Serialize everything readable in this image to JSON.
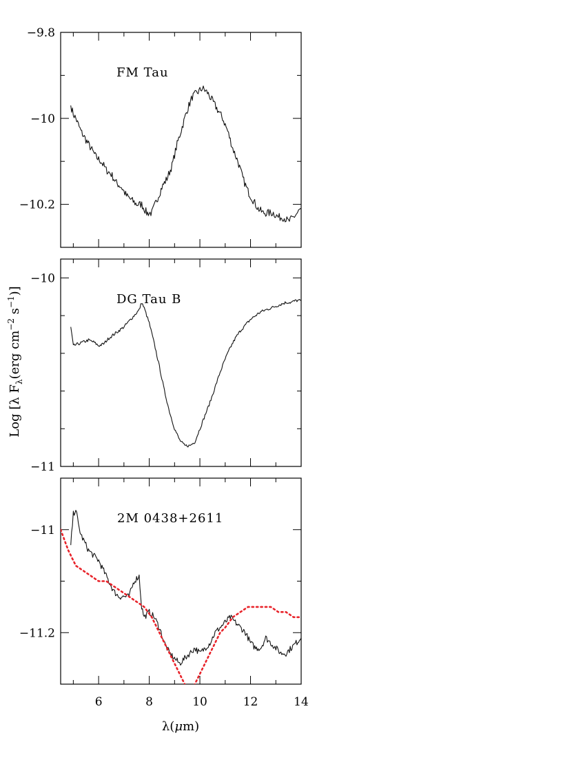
{
  "chart_data": {
    "type": "line",
    "layout": "vertical-stack",
    "x_axis": {
      "ticks": [
        6,
        8,
        10,
        12,
        14
      ],
      "tick_labels": [
        "6",
        "8",
        "10",
        "12",
        "14"
      ],
      "minor_step": 1,
      "range": [
        4.5,
        14.0
      ]
    },
    "xlabel": {
      "prefix": "λ(",
      "mu": "μ",
      "suffix": "m)"
    },
    "ylabel": {
      "text": "Log [λ F",
      "sub": "λ",
      "text2": "(erg cm",
      "sup1": "−2",
      "text3": " s",
      "sup2": "−1",
      "text4": ")]"
    },
    "colors": {
      "observed": "#111111",
      "model": "#e8232a"
    },
    "panels": [
      {
        "label": "FM Tau",
        "ylim": [
          -10.3,
          -9.8
        ],
        "yticks": [
          -9.8,
          -10.0,
          -10.2
        ],
        "ytick_labels": [
          "−9.8",
          "−10",
          "−10.2"
        ],
        "yminor": 0.1,
        "series": [
          {
            "name": "observed",
            "x": [
              4.9,
              5.0,
              5.1,
              5.3,
              5.5,
              5.7,
              5.9,
              6.1,
              6.3,
              6.5,
              6.7,
              6.9,
              7.1,
              7.3,
              7.5,
              7.7,
              7.9,
              8.1,
              8.3,
              8.5,
              8.7,
              8.9,
              9.1,
              9.3,
              9.5,
              9.7,
              9.9,
              10.1,
              10.3,
              10.5,
              10.7,
              10.9,
              11.1,
              11.3,
              11.5,
              11.7,
              11.9,
              12.1,
              12.3,
              12.5,
              12.7,
              12.9,
              13.1,
              13.3,
              13.5,
              13.7,
              14.0
            ],
            "y": [
              -9.97,
              -9.99,
              -10.0,
              -10.03,
              -10.05,
              -10.07,
              -10.09,
              -10.1,
              -10.12,
              -10.13,
              -10.15,
              -10.16,
              -10.18,
              -10.19,
              -10.2,
              -10.2,
              -10.22,
              -10.22,
              -10.19,
              -10.16,
              -10.14,
              -10.11,
              -10.06,
              -10.02,
              -9.98,
              -9.95,
              -9.94,
              -9.93,
              -9.94,
              -9.96,
              -9.98,
              -10.0,
              -10.03,
              -10.07,
              -10.1,
              -10.14,
              -10.17,
              -10.19,
              -10.21,
              -10.22,
              -10.22,
              -10.22,
              -10.23,
              -10.23,
              -10.24,
              -10.23,
              -10.21
            ],
            "noise": 0.009
          }
        ]
      },
      {
        "label": "DG Tau B",
        "ylim": [
          -11.0,
          -9.9
        ],
        "yticks": [
          -10.0,
          -11.0
        ],
        "ytick_labels": [
          "−10",
          "−11"
        ],
        "yminor": 0.2,
        "series": [
          {
            "name": "observed",
            "x": [
              4.9,
              5.0,
              5.2,
              5.4,
              5.6,
              5.8,
              6.0,
              6.2,
              6.4,
              6.6,
              6.8,
              7.0,
              7.2,
              7.4,
              7.6,
              7.7,
              7.8,
              7.9,
              8.0,
              8.2,
              8.4,
              8.6,
              8.8,
              9.0,
              9.2,
              9.4,
              9.6,
              9.8,
              10.0,
              10.2,
              10.4,
              10.6,
              10.8,
              11.0,
              11.2,
              11.4,
              11.6,
              11.8,
              12.0,
              12.2,
              12.4,
              12.6,
              12.8,
              13.0,
              13.2,
              13.4,
              13.6,
              13.8,
              14.0
            ],
            "y": [
              -10.26,
              -10.36,
              -10.35,
              -10.34,
              -10.33,
              -10.34,
              -10.36,
              -10.35,
              -10.32,
              -10.3,
              -10.28,
              -10.26,
              -10.23,
              -10.2,
              -10.17,
              -10.13,
              -10.16,
              -10.2,
              -10.24,
              -10.35,
              -10.47,
              -10.6,
              -10.71,
              -10.8,
              -10.86,
              -10.89,
              -10.89,
              -10.87,
              -10.8,
              -10.73,
              -10.66,
              -10.58,
              -10.5,
              -10.43,
              -10.37,
              -10.32,
              -10.28,
              -10.25,
              -10.22,
              -10.2,
              -10.18,
              -10.17,
              -10.16,
              -10.15,
              -10.14,
              -10.13,
              -10.13,
              -10.12,
              -10.12
            ],
            "noise": 0.008
          }
        ]
      },
      {
        "label": "2M 0438+2611",
        "ylim": [
          -11.3,
          -10.9
        ],
        "yticks": [
          -11.0,
          -11.2
        ],
        "ytick_labels": [
          "−11",
          "−11.2"
        ],
        "yminor": 0.1,
        "series": [
          {
            "name": "observed",
            "x": [
              4.9,
              5.0,
              5.1,
              5.2,
              5.3,
              5.4,
              5.5,
              5.6,
              5.8,
              6.0,
              6.2,
              6.4,
              6.6,
              6.8,
              7.0,
              7.2,
              7.4,
              7.6,
              7.7,
              7.8,
              8.0,
              8.2,
              8.4,
              8.6,
              8.8,
              9.0,
              9.2,
              9.4,
              9.6,
              9.8,
              10.0,
              10.2,
              10.4,
              10.6,
              10.8,
              11.0,
              11.2,
              11.4,
              11.6,
              11.8,
              12.0,
              12.2,
              12.4,
              12.6,
              12.8,
              13.0,
              13.2,
              13.4,
              13.6,
              13.8,
              14.0
            ],
            "y": [
              -11.03,
              -10.97,
              -10.96,
              -10.99,
              -11.01,
              -11.02,
              -11.03,
              -11.04,
              -11.05,
              -11.06,
              -11.08,
              -11.1,
              -11.12,
              -11.13,
              -11.13,
              -11.13,
              -11.1,
              -11.09,
              -11.15,
              -11.17,
              -11.16,
              -11.17,
              -11.19,
              -11.22,
              -11.24,
              -11.25,
              -11.26,
              -11.25,
              -11.24,
              -11.23,
              -11.24,
              -11.23,
              -11.22,
              -11.2,
              -11.19,
              -11.18,
              -11.17,
              -11.18,
              -11.19,
              -11.2,
              -11.22,
              -11.23,
              -11.23,
              -11.21,
              -11.22,
              -11.23,
              -11.24,
              -11.24,
              -11.23,
              -11.22,
              -11.21
            ],
            "noise": 0.006
          },
          {
            "name": "model",
            "x": [
              4.5,
              4.8,
              5.1,
              5.4,
              5.7,
              6.0,
              6.3,
              6.6,
              6.9,
              7.2,
              7.5,
              7.8,
              8.1,
              8.4,
              8.7,
              9.0,
              9.2,
              9.4,
              9.6,
              9.8,
              10.0,
              10.2,
              10.4,
              10.6,
              10.8,
              11.0,
              11.3,
              11.6,
              11.9,
              12.2,
              12.5,
              12.8,
              13.1,
              13.4,
              13.7,
              14.0
            ],
            "y": [
              -11.0,
              -11.04,
              -11.07,
              -11.08,
              -11.09,
              -11.1,
              -11.1,
              -11.11,
              -11.12,
              -11.13,
              -11.14,
              -11.15,
              -11.17,
              -11.2,
              -11.23,
              -11.26,
              -11.28,
              -11.3,
              -11.31,
              -11.3,
              -11.28,
              -11.26,
              -11.24,
              -11.22,
              -11.2,
              -11.19,
              -11.17,
              -11.16,
              -11.15,
              -11.15,
              -11.15,
              -11.15,
              -11.16,
              -11.16,
              -11.17,
              -11.17
            ]
          }
        ]
      }
    ]
  }
}
